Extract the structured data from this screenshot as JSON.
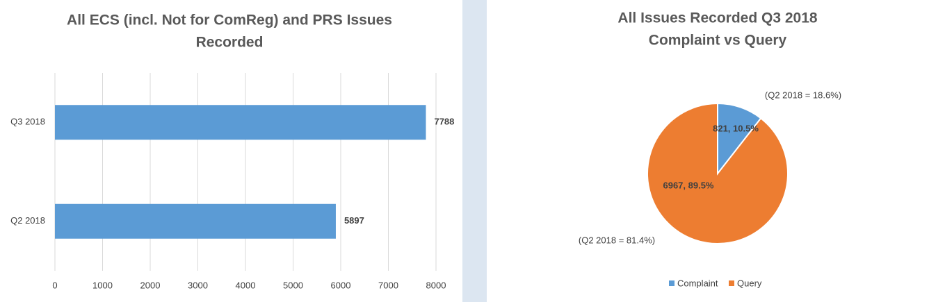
{
  "chart_data": [
    {
      "type": "bar",
      "orientation": "horizontal",
      "title": [
        "All ECS (incl. Not for ComReg) and PRS Issues",
        "Recorded"
      ],
      "categories": [
        "Q3 2018",
        "Q2 2018"
      ],
      "values": [
        7788,
        5897
      ],
      "color": "#5b9bd5",
      "xlim": [
        0,
        8000
      ],
      "xticks": [
        0,
        1000,
        2000,
        3000,
        4000,
        5000,
        6000,
        7000,
        8000
      ],
      "grid": true
    },
    {
      "type": "pie",
      "title": [
        "All Issues Recorded Q3 2018",
        "Complaint vs Query"
      ],
      "categories": [
        "Complaint",
        "Query"
      ],
      "values": [
        821,
        6967
      ],
      "value_labels": [
        "821, 10.5%",
        "6967, 89.5%"
      ],
      "colors": [
        "#5b9bd5",
        "#ed7d31"
      ],
      "annotations": [
        "(Q2 2018 = 18.6%)",
        "(Q2 2018 = 81.4%)"
      ],
      "legend": "bottom"
    }
  ]
}
